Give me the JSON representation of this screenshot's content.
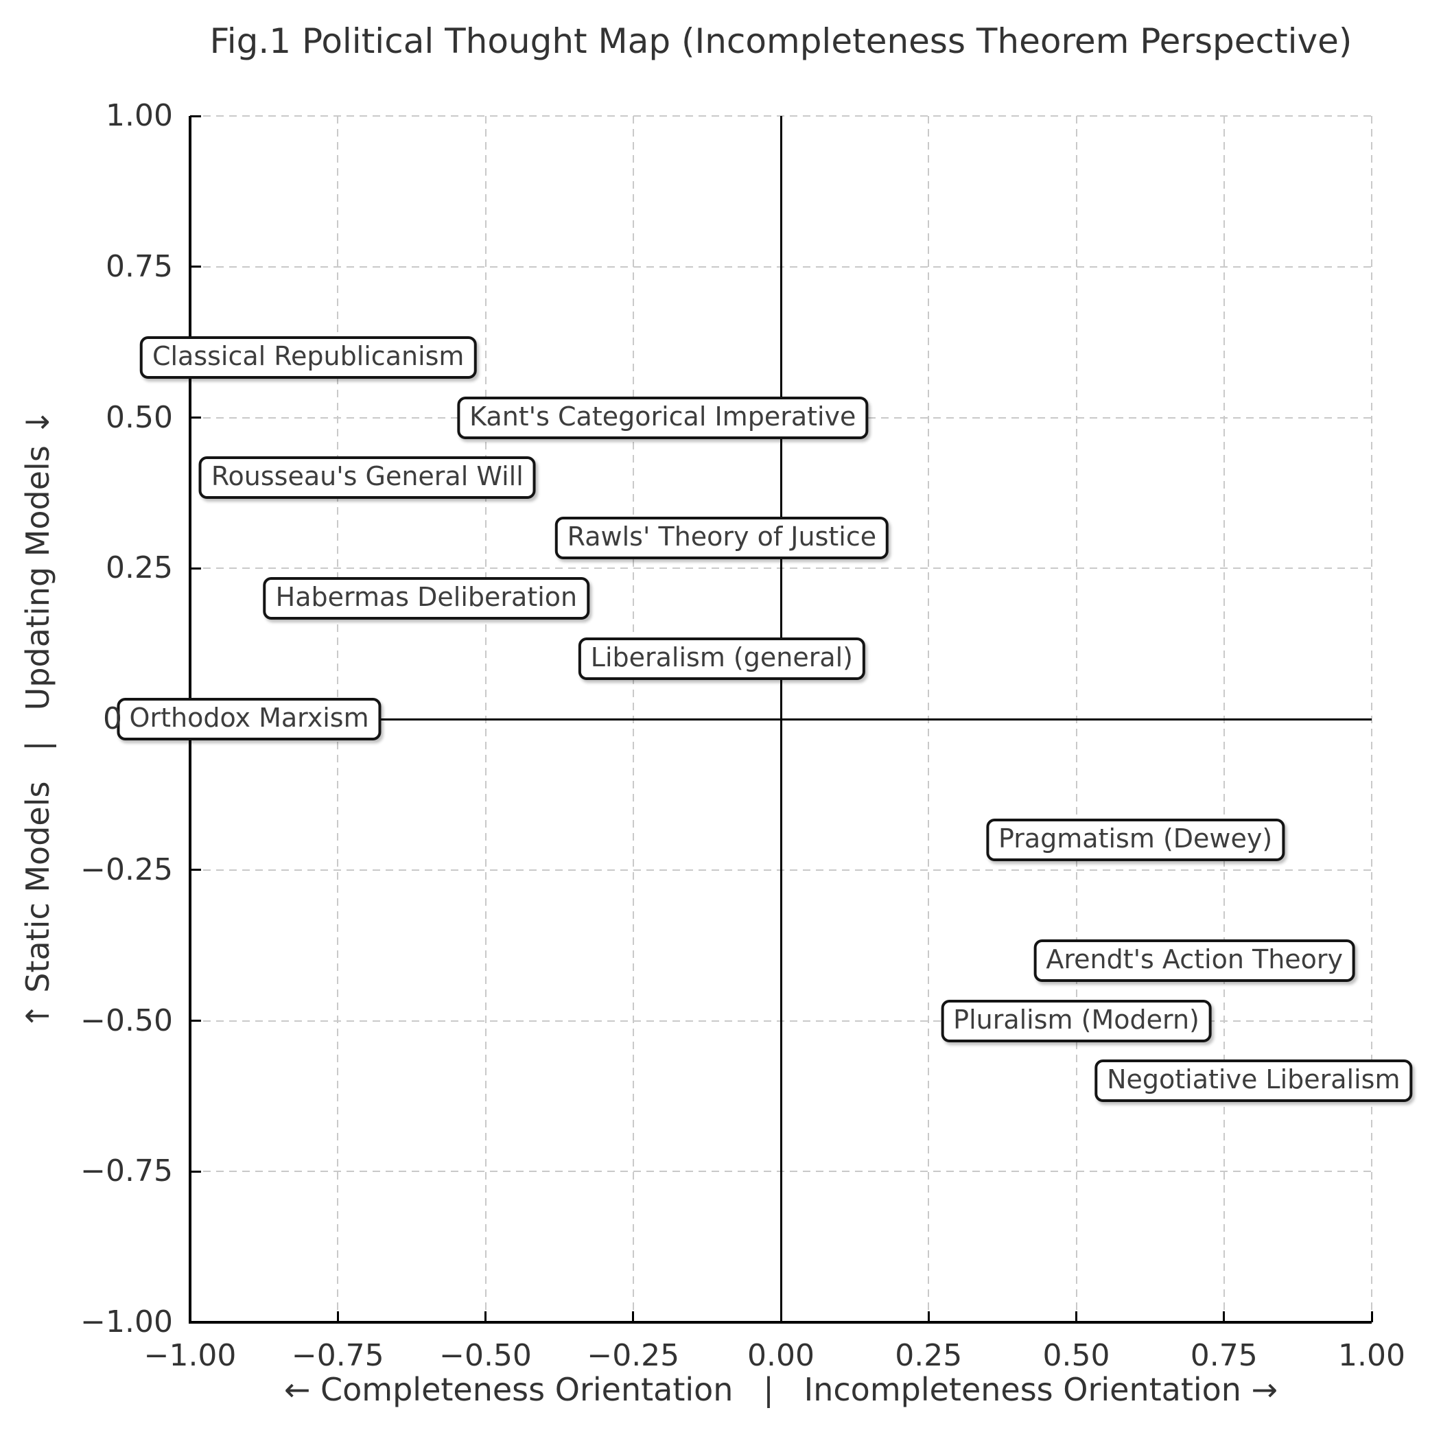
{
  "chart_data": {
    "type": "scatter",
    "title": "Fig.1 Political Thought Map (Incompleteness Theorem Perspective)",
    "xlabel": "← Completeness Orientation   |   Incompleteness Orientation →",
    "ylabel": "↑ Static Models   |   Updating Models ↓",
    "xlim": [
      -1,
      1
    ],
    "ylim": [
      -1,
      1
    ],
    "grid": "dashed",
    "legend": "none",
    "zero_lines": true,
    "xticks": {
      "values": [
        -1.0,
        -0.75,
        -0.5,
        -0.25,
        0.0,
        0.25,
        0.5,
        0.75,
        1.0
      ],
      "labels": [
        "−1.00",
        "−0.75",
        "−0.50",
        "−0.25",
        "0.00",
        "0.25",
        "0.50",
        "0.75",
        "1.00"
      ]
    },
    "yticks": {
      "values": [
        1.0,
        0.75,
        0.5,
        0.25,
        0.0,
        -0.25,
        -0.5,
        -0.75,
        -1.0
      ],
      "labels": [
        "1.00",
        "0.75",
        "0.50",
        "0.25",
        "0",
        "−0.25",
        "−0.50",
        "−0.75",
        "−1.00"
      ]
    },
    "points": [
      {
        "label": "Classical Republicanism",
        "x": -0.8,
        "y": 0.6
      },
      {
        "label": "Kant's Categorical Imperative",
        "x": -0.2,
        "y": 0.5
      },
      {
        "label": "Rousseau's General Will",
        "x": -0.7,
        "y": 0.4
      },
      {
        "label": "Rawls' Theory of Justice",
        "x": -0.1,
        "y": 0.3
      },
      {
        "label": "Habermas Deliberation",
        "x": -0.6,
        "y": 0.2
      },
      {
        "label": "Liberalism (general)",
        "x": -0.1,
        "y": 0.1
      },
      {
        "label": "Orthodox Marxism",
        "x": -0.9,
        "y": 0.0
      },
      {
        "label": "Pragmatism (Dewey)",
        "x": 0.6,
        "y": -0.2
      },
      {
        "label": "Arendt's Action Theory",
        "x": 0.7,
        "y": -0.4
      },
      {
        "label": "Pluralism (Modern)",
        "x": 0.5,
        "y": -0.5
      },
      {
        "label": "Negotiative Liberalism",
        "x": 0.8,
        "y": -0.6
      }
    ]
  },
  "colors": {
    "background": "#ffffff",
    "text": "#333333",
    "annotation_text": "#3d3d3d",
    "grid": "#c9c9c9",
    "axis": "#000000",
    "box_border": "#141414",
    "box_fill": "#ffffff"
  }
}
